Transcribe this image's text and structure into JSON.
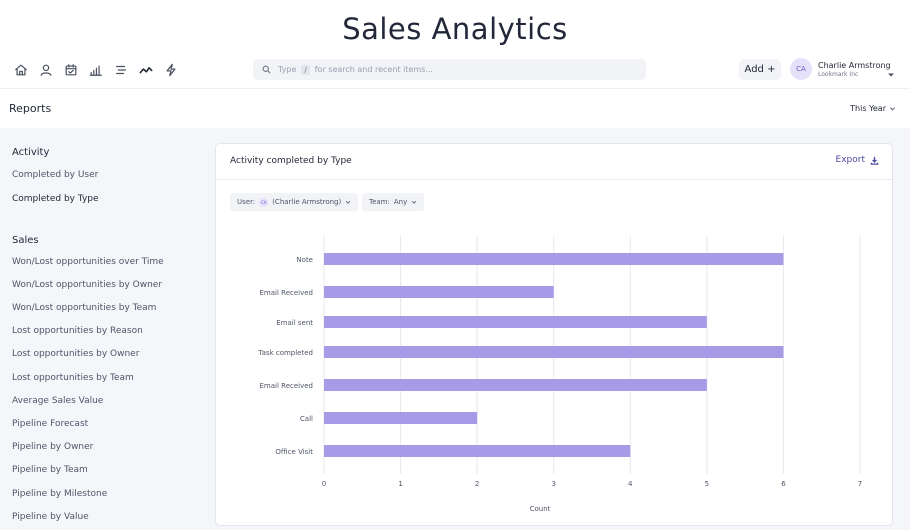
{
  "app": {
    "title": "Sales Analytics"
  },
  "nav": {
    "icons": [
      "home-icon",
      "user-icon",
      "calendar-check-icon",
      "bar-chart-icon",
      "list-icon",
      "trend-line-icon",
      "lightning-icon"
    ],
    "active": "trend-line-icon"
  },
  "search": {
    "hint_type": "Type",
    "hint_key": "/",
    "hint_rest": "for search and recent items..."
  },
  "header": {
    "add_label": "Add +",
    "user": {
      "initials": "CA",
      "name": "Charlie Armstrong",
      "org": "Lookmark Inc"
    }
  },
  "subheader": {
    "title": "Reports",
    "period": "This Year"
  },
  "sidebar": {
    "activity_heading": "Activity",
    "activity_items": [
      {
        "label": "Completed by User",
        "active": false
      },
      {
        "label": "Completed by Type",
        "active": true
      }
    ],
    "sales_heading": "Sales",
    "sales_items": [
      {
        "label": "Won/Lost opportunities over Time"
      },
      {
        "label": "Won/Lost opportunities by Owner"
      },
      {
        "label": "Won/Lost opportunities by Team"
      },
      {
        "label": "Lost opportunities by Reason"
      },
      {
        "label": "Lost opportunities by Owner"
      },
      {
        "label": "Lost opportunities by Team"
      },
      {
        "label": "Average Sales Value"
      },
      {
        "label": "Pipeline Forecast"
      },
      {
        "label": "Pipeline by Owner"
      },
      {
        "label": "Pipeline by Team"
      },
      {
        "label": "Pipeline by Milestone"
      },
      {
        "label": "Pipeline by Value"
      }
    ]
  },
  "panel": {
    "title": "Activity completed by Type",
    "export_label": "Export",
    "filters": {
      "user_label": "User:",
      "user_initials": "CA",
      "user_value": "(Charlie Armstrong)",
      "team_label": "Team:",
      "team_value": "Any"
    }
  },
  "colors": {
    "bar": "#a79be8",
    "grid": "#e6e8ee",
    "accent": "#4a4a9c"
  },
  "chart_data": {
    "type": "bar",
    "orientation": "horizontal",
    "categories": [
      "Note",
      "Email Received",
      "Email sent",
      "Task completed",
      "Email Received",
      "Call",
      "Office Visit"
    ],
    "values": [
      6,
      3,
      5,
      6,
      5,
      2,
      4
    ],
    "xlabel": "Count",
    "xlim": [
      0,
      7
    ],
    "xticks": [
      0,
      1,
      2,
      3,
      4,
      5,
      6,
      7
    ],
    "grid": true
  }
}
